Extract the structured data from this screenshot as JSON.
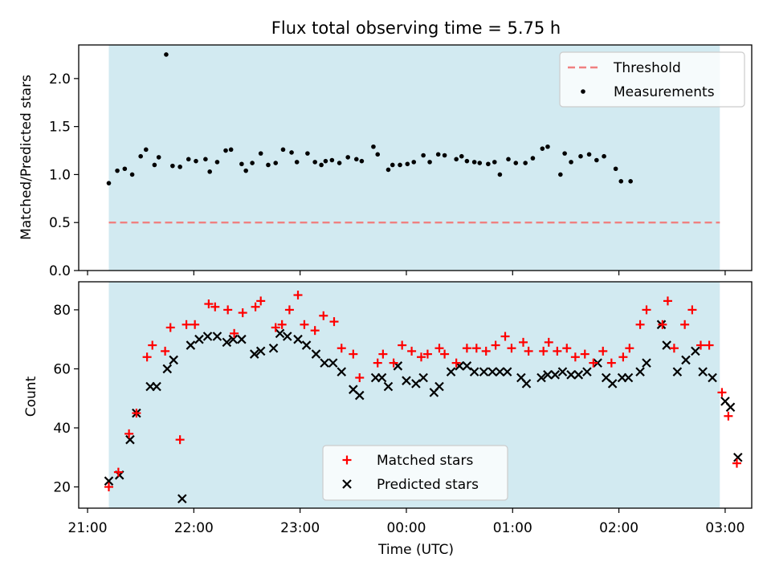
{
  "chart_data": {
    "type": "scatter",
    "title": "Flux total observing time = 5.75 h",
    "xlabel": "Time (UTC)",
    "x_unit": "hours after 21:00 UTC",
    "xlim": [
      -0.0833,
      6.25
    ],
    "x_ticks": [
      {
        "label": "21:00",
        "value": 0
      },
      {
        "label": "22:00",
        "value": 1
      },
      {
        "label": "23:00",
        "value": 2
      },
      {
        "label": "00:00",
        "value": 3
      },
      {
        "label": "01:00",
        "value": 4
      },
      {
        "label": "02:00",
        "value": 5
      },
      {
        "label": "03:00",
        "value": 6
      }
    ],
    "observing_window": [
      0.2,
      5.95
    ],
    "shade_color": "#add8e6",
    "grid": false,
    "ratio_panel": {
      "ylabel": "Matched/Predicted stars",
      "ylim": [
        0,
        2.35
      ],
      "y_ticks": [
        "0.0",
        "0.5",
        "1.0",
        "1.5",
        "2.0"
      ],
      "y_tick_values": [
        0,
        0.5,
        1.0,
        1.5,
        2.0
      ],
      "legend_position": "top-right",
      "threshold": {
        "name": "Threshold",
        "value": 0.5,
        "color": "#f08080"
      },
      "measurements": {
        "name": "Measurements",
        "color": "#000000",
        "points": [
          [
            0.2,
            0.91
          ],
          [
            0.28,
            1.04
          ],
          [
            0.35,
            1.06
          ],
          [
            0.42,
            1.0
          ],
          [
            0.5,
            1.19
          ],
          [
            0.55,
            1.26
          ],
          [
            0.63,
            1.1
          ],
          [
            0.67,
            1.18
          ],
          [
            0.74,
            2.25
          ],
          [
            0.8,
            1.09
          ],
          [
            0.87,
            1.08
          ],
          [
            0.95,
            1.16
          ],
          [
            1.02,
            1.14
          ],
          [
            1.11,
            1.16
          ],
          [
            1.15,
            1.03
          ],
          [
            1.22,
            1.13
          ],
          [
            1.3,
            1.25
          ],
          [
            1.35,
            1.26
          ],
          [
            1.45,
            1.11
          ],
          [
            1.49,
            1.04
          ],
          [
            1.55,
            1.12
          ],
          [
            1.63,
            1.22
          ],
          [
            1.7,
            1.1
          ],
          [
            1.77,
            1.12
          ],
          [
            1.84,
            1.26
          ],
          [
            1.92,
            1.23
          ],
          [
            1.97,
            1.13
          ],
          [
            2.07,
            1.22
          ],
          [
            2.14,
            1.13
          ],
          [
            2.2,
            1.1
          ],
          [
            2.24,
            1.14
          ],
          [
            2.3,
            1.15
          ],
          [
            2.37,
            1.12
          ],
          [
            2.45,
            1.18
          ],
          [
            2.53,
            1.16
          ],
          [
            2.58,
            1.14
          ],
          [
            2.69,
            1.29
          ],
          [
            2.73,
            1.21
          ],
          [
            2.83,
            1.05
          ],
          [
            2.87,
            1.1
          ],
          [
            2.94,
            1.1
          ],
          [
            3.01,
            1.11
          ],
          [
            3.07,
            1.13
          ],
          [
            3.16,
            1.2
          ],
          [
            3.22,
            1.13
          ],
          [
            3.3,
            1.21
          ],
          [
            3.36,
            1.2
          ],
          [
            3.47,
            1.16
          ],
          [
            3.52,
            1.19
          ],
          [
            3.57,
            1.14
          ],
          [
            3.64,
            1.13
          ],
          [
            3.69,
            1.12
          ],
          [
            3.77,
            1.11
          ],
          [
            3.83,
            1.13
          ],
          [
            3.88,
            1.0
          ],
          [
            3.96,
            1.16
          ],
          [
            4.03,
            1.12
          ],
          [
            4.12,
            1.12
          ],
          [
            4.19,
            1.17
          ],
          [
            4.28,
            1.27
          ],
          [
            4.33,
            1.29
          ],
          [
            4.45,
            1.0
          ],
          [
            4.49,
            1.22
          ],
          [
            4.55,
            1.13
          ],
          [
            4.64,
            1.19
          ],
          [
            4.72,
            1.21
          ],
          [
            4.79,
            1.15
          ],
          [
            4.86,
            1.19
          ],
          [
            4.97,
            1.06
          ],
          [
            5.02,
            0.93
          ],
          [
            5.11,
            0.93
          ]
        ]
      }
    },
    "count_panel": {
      "ylabel": "Count",
      "ylim": [
        12.8,
        89.5
      ],
      "y_ticks": [
        "20",
        "40",
        "60",
        "80"
      ],
      "y_tick_values": [
        20,
        40,
        60,
        80
      ],
      "legend_position": "lower center",
      "series": [
        {
          "name": "Matched stars",
          "marker": "plus",
          "color": "#ff0000",
          "points": [
            [
              0.2,
              20
            ],
            [
              0.29,
              25
            ],
            [
              0.39,
              38
            ],
            [
              0.46,
              45
            ],
            [
              0.56,
              64
            ],
            [
              0.61,
              68
            ],
            [
              0.73,
              66
            ],
            [
              0.78,
              74
            ],
            [
              0.87,
              36
            ],
            [
              0.93,
              75
            ],
            [
              1.01,
              75
            ],
            [
              1.14,
              82
            ],
            [
              1.2,
              81
            ],
            [
              1.32,
              80
            ],
            [
              1.38,
              72
            ],
            [
              1.46,
              79
            ],
            [
              1.58,
              81
            ],
            [
              1.63,
              83
            ],
            [
              1.77,
              74
            ],
            [
              1.83,
              75
            ],
            [
              1.9,
              80
            ],
            [
              1.98,
              85
            ],
            [
              2.04,
              75
            ],
            [
              2.14,
              73
            ],
            [
              2.22,
              78
            ],
            [
              2.32,
              76
            ],
            [
              2.39,
              67
            ],
            [
              2.5,
              65
            ],
            [
              2.56,
              57
            ],
            [
              2.73,
              62
            ],
            [
              2.78,
              65
            ],
            [
              2.88,
              62
            ],
            [
              2.96,
              68
            ],
            [
              3.05,
              66
            ],
            [
              3.14,
              64
            ],
            [
              3.2,
              65
            ],
            [
              3.31,
              67
            ],
            [
              3.36,
              65
            ],
            [
              3.47,
              62
            ],
            [
              3.57,
              67
            ],
            [
              3.66,
              67
            ],
            [
              3.75,
              66
            ],
            [
              3.84,
              68
            ],
            [
              3.93,
              71
            ],
            [
              3.99,
              67
            ],
            [
              4.1,
              69
            ],
            [
              4.15,
              66
            ],
            [
              4.29,
              66
            ],
            [
              4.34,
              69
            ],
            [
              4.42,
              66
            ],
            [
              4.51,
              67
            ],
            [
              4.59,
              64
            ],
            [
              4.68,
              65
            ],
            [
              4.76,
              62
            ],
            [
              4.85,
              66
            ],
            [
              4.93,
              62
            ],
            [
              5.04,
              64
            ],
            [
              5.1,
              67
            ],
            [
              5.2,
              75
            ],
            [
              5.26,
              80
            ],
            [
              5.41,
              75
            ],
            [
              5.46,
              83
            ],
            [
              5.52,
              67
            ],
            [
              5.62,
              75
            ],
            [
              5.69,
              80
            ],
            [
              5.77,
              68
            ],
            [
              5.85,
              68
            ],
            [
              5.97,
              52
            ],
            [
              6.03,
              44
            ],
            [
              6.11,
              28
            ]
          ]
        },
        {
          "name": "Predicted stars",
          "marker": "x",
          "color": "#000000",
          "points": [
            [
              0.2,
              22
            ],
            [
              0.3,
              24
            ],
            [
              0.4,
              36
            ],
            [
              0.46,
              45
            ],
            [
              0.59,
              54
            ],
            [
              0.65,
              54
            ],
            [
              0.75,
              60
            ],
            [
              0.81,
              63
            ],
            [
              0.89,
              16
            ],
            [
              0.97,
              68
            ],
            [
              1.05,
              70
            ],
            [
              1.13,
              71
            ],
            [
              1.22,
              71
            ],
            [
              1.31,
              69
            ],
            [
              1.37,
              70
            ],
            [
              1.45,
              70
            ],
            [
              1.57,
              65
            ],
            [
              1.63,
              66
            ],
            [
              1.75,
              67
            ],
            [
              1.81,
              72
            ],
            [
              1.88,
              71
            ],
            [
              1.98,
              70
            ],
            [
              2.06,
              68
            ],
            [
              2.15,
              65
            ],
            [
              2.23,
              62
            ],
            [
              2.31,
              62
            ],
            [
              2.39,
              59
            ],
            [
              2.5,
              53
            ],
            [
              2.56,
              51
            ],
            [
              2.71,
              57
            ],
            [
              2.77,
              57
            ],
            [
              2.83,
              54
            ],
            [
              2.92,
              61
            ],
            [
              3.0,
              56
            ],
            [
              3.09,
              55
            ],
            [
              3.16,
              57
            ],
            [
              3.26,
              52
            ],
            [
              3.31,
              54
            ],
            [
              3.42,
              59
            ],
            [
              3.5,
              61
            ],
            [
              3.57,
              61
            ],
            [
              3.64,
              59
            ],
            [
              3.73,
              59
            ],
            [
              3.81,
              59
            ],
            [
              3.88,
              59
            ],
            [
              3.95,
              59
            ],
            [
              4.08,
              57
            ],
            [
              4.13,
              55
            ],
            [
              4.27,
              57
            ],
            [
              4.33,
              58
            ],
            [
              4.4,
              58
            ],
            [
              4.47,
              59
            ],
            [
              4.55,
              58
            ],
            [
              4.62,
              58
            ],
            [
              4.7,
              59
            ],
            [
              4.8,
              62
            ],
            [
              4.88,
              57
            ],
            [
              4.94,
              55
            ],
            [
              5.03,
              57
            ],
            [
              5.09,
              57
            ],
            [
              5.2,
              59
            ],
            [
              5.26,
              62
            ],
            [
              5.4,
              75
            ],
            [
              5.45,
              68
            ],
            [
              5.55,
              59
            ],
            [
              5.63,
              63
            ],
            [
              5.72,
              66
            ],
            [
              5.79,
              59
            ],
            [
              5.88,
              57
            ],
            [
              6.0,
              49
            ],
            [
              6.05,
              47
            ],
            [
              6.12,
              30
            ]
          ]
        }
      ]
    }
  }
}
